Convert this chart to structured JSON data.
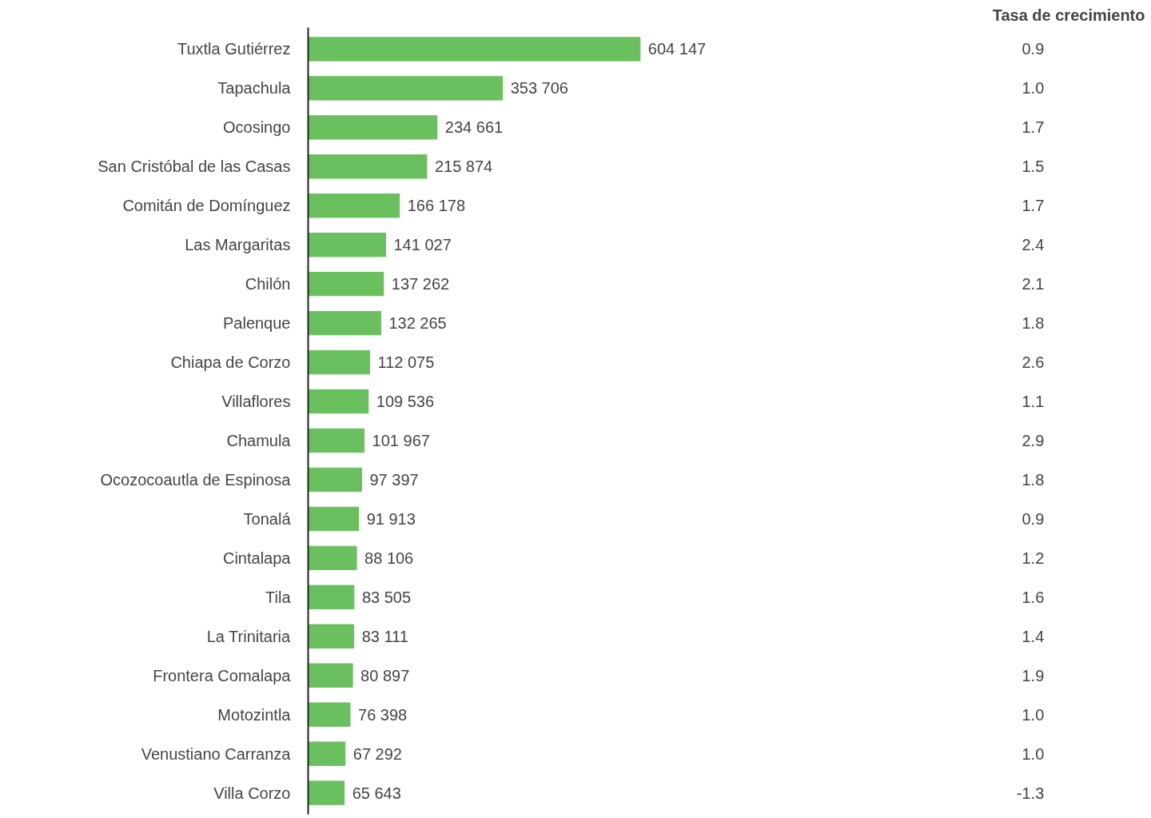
{
  "chart_data": {
    "type": "bar",
    "orientation": "horizontal",
    "color": "#6abf5e",
    "categories": [
      "Tuxtla Gutiérrez",
      "Tapachula",
      "Ocosingo",
      "San Cristóbal de las Casas",
      "Comitán de Domínguez",
      "Las Margaritas",
      "Chilón",
      "Palenque",
      "Chiapa de Corzo",
      "Villaflores",
      "Chamula",
      "Ocozocoautla de Espinosa",
      "Tonalá",
      "Cintalapa",
      "Tila",
      "La Trinitaria",
      "Frontera Comalapa",
      "Motozintla",
      "Venustiano Carranza",
      "Villa Corzo"
    ],
    "values": [
      604147,
      353706,
      234661,
      215874,
      166178,
      141027,
      137262,
      132265,
      112075,
      109536,
      101967,
      97397,
      91913,
      88106,
      83505,
      83111,
      80897,
      76398,
      67292,
      65643
    ],
    "value_labels": [
      "604 147",
      "353 706",
      "234 661",
      "215 874",
      "166 178",
      "141 027",
      "137 262",
      "132 265",
      "112 075",
      "109 536",
      "101 967",
      "97 397",
      "91 913",
      "88 106",
      "83 505",
      "83 111",
      "80 897",
      "76 398",
      "67 292",
      "65 643"
    ],
    "annotations": [
      "Tasa de crecimiento",
      "0.9",
      "1.0",
      "1.7",
      "1.5",
      "1.7",
      "2.4",
      "2.1",
      "1.8",
      "2.6",
      "1.1",
      "2.9",
      "1.8",
      "0.9",
      "1.2",
      "1.6",
      "1.4",
      "1.9",
      "1.0",
      "1.0",
      "-1.3"
    ]
  }
}
